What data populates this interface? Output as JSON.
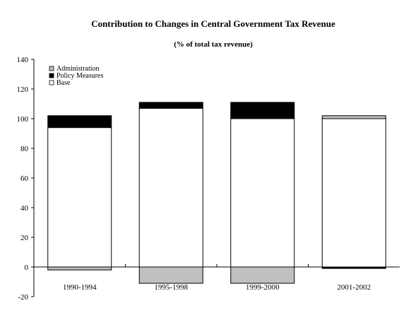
{
  "chart_data": {
    "type": "bar",
    "stacked": true,
    "title": "Contribution to Changes in Central Government Tax Revenue",
    "subtitle": "(% of total tax revenue)",
    "xlabel": "",
    "ylabel": "",
    "categories": [
      "1990-1994",
      "1995-1998",
      "1999-2000",
      "2001-2002"
    ],
    "series": [
      {
        "name": "Base",
        "values": [
          94,
          107,
          100,
          100
        ],
        "color": "#ffffff"
      },
      {
        "name": "Policy Measures",
        "values": [
          8,
          4,
          11,
          -1
        ],
        "color": "#000000"
      },
      {
        "name": "Administration",
        "values": [
          -2,
          -11,
          -11,
          2
        ],
        "color": "#c0c0c0"
      }
    ],
    "legend_order": [
      "Administration",
      "Policy Measures",
      "Base"
    ],
    "ylim": [
      -20,
      140
    ],
    "yticks": [
      -20,
      0,
      20,
      40,
      60,
      80,
      100,
      120,
      140
    ],
    "grid": false,
    "legend_placement": "top-left"
  }
}
